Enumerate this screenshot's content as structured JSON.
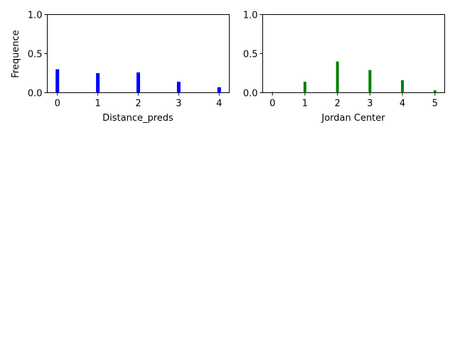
{
  "chart_data": [
    {
      "type": "bar",
      "x": [
        0,
        1,
        2,
        3,
        4
      ],
      "values": [
        0.3,
        0.25,
        0.26,
        0.14,
        0.07
      ],
      "color": "#0000ff",
      "xlabel": "Distance_preds",
      "ylabel": "Frequence",
      "xticks": [
        "0",
        "1",
        "2",
        "3",
        "4"
      ],
      "yticks": [
        "0.0",
        "0.5",
        "1.0"
      ],
      "xlim": [
        -0.25,
        4.25
      ],
      "ylim": [
        0,
        1.0
      ],
      "grid": false
    },
    {
      "type": "bar",
      "x": [
        0,
        1,
        2,
        3,
        4,
        5
      ],
      "values": [
        0.01,
        0.14,
        0.4,
        0.29,
        0.16,
        0.03
      ],
      "color": "#008000",
      "xlabel": "Jordan Center",
      "ylabel": "",
      "xticks": [
        "0",
        "1",
        "2",
        "3",
        "4",
        "5"
      ],
      "yticks": [
        "0.0",
        "0.5",
        "1.0"
      ],
      "xlim": [
        -0.3,
        5.3
      ],
      "ylim": [
        0,
        1.0
      ],
      "grid": false
    }
  ]
}
